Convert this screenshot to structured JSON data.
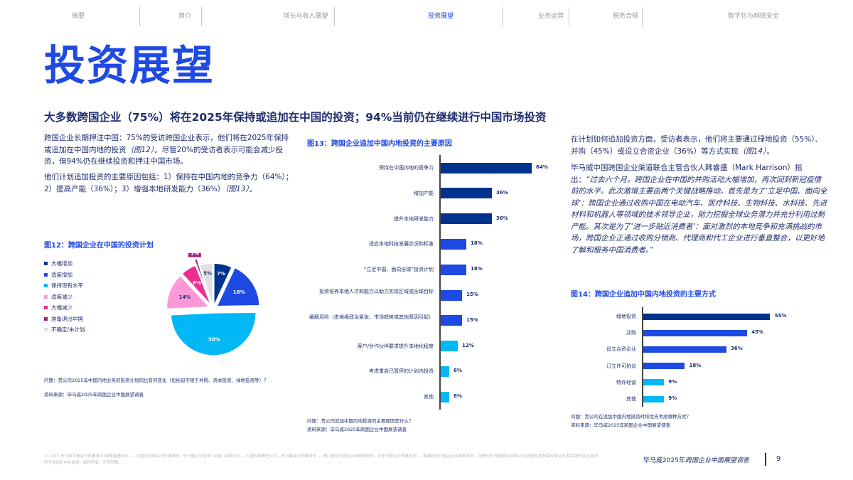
{
  "nav": {
    "items": [
      {
        "label": "摘要",
        "active": false
      },
      {
        "label": "简介",
        "active": false
      },
      {
        "label": "增长与收入展望",
        "active": false
      },
      {
        "label": "投资展望",
        "active": true
      },
      {
        "label": "业务运营",
        "active": false
      },
      {
        "label": "税务合规",
        "active": false
      },
      {
        "label": "数字化与网络安全",
        "active": false
      }
    ]
  },
  "page": {
    "title": "投资展望",
    "headline": "大多数跨国企业（75%）将在2025年保持或追加在中国的投资；94%当前仍在继续进行中国市场投资"
  },
  "left": {
    "para1_a": "跨国企业长期押注中国：75%的受访跨国企业表示，他们将在2025年保持或追加在中国内地的投资",
    "para1_ref": "（图12）",
    "para1_b": "。尽管20%的受访者表示可能会减少投资，但94%仍在继续投资和押注中国市场。",
    "para2_a": "他们计划追加投资的主要原因包括：1）保持在中国内地的竞争力（64%）；2）提高产能（36%）；3）增强本地研发能力（36%）",
    "para2_ref": "（图13）",
    "para2_b": "。"
  },
  "fig12": {
    "title": "图12：跨国企业在中国的投资计划",
    "note_question": "问题：贵公司2025年中国内地业务的投资计划同比有何变化（包括但不限于并购、资本投资、绿地投资等）？",
    "note_source": "资料来源：毕马威2025年跨国企业中国展望调查"
  },
  "fig13": {
    "title": "图13：跨国企业追加中国内地投资的主要原因",
    "note_question": "问题：贵公司追加中国内地投资的主要原因是什么？",
    "note_source": "资料来源：毕马威2025年跨国企业中国展望调查"
  },
  "right": {
    "para1_a": "在计划如何追加投资方面，受访者表示，他们将主要通过绿地投资（55%）、并购（45%）或设立合资企业（36%）等方式实现",
    "para1_ref": "（图14）",
    "para1_b": "。",
    "para2_a": "毕马威中国跨国企业渠道联合主管合伙人韩睿盛（Mark Harrison）指出：",
    "para2_quote": "“过去六个月，跨国企业在中国的并购活动大幅增加，再次回到新冠疫情前的水平。此次激增主要由两个关键战略推动。首先是为了‘立足中国、面向全球’：跨国企业通过收购中国在电动汽车、医疗科技、生物科技、水科技、先进材料和机器人等领域的技术领导企业，助力挖掘全球业务潜力并充分利用过剩产能。其次是为了‘进一步贴近消费者’：面对激烈的本地竞争和充满挑战的市场，跨国企业正通过收购分销商、代理商和代工企业进行垂直整合，以更好地了解和服务中国消费者。”"
  },
  "fig14": {
    "title": "图14：跨国企业追加中国内地投资的主要方式",
    "note_question": "问题：贵公司在追加中国内地投资时将优先考虑哪种方式？",
    "note_source": "资料来源：毕马威2025年跨国企业中国展望调查"
  },
  "footer": {
    "legal": "© 2025 毕马威华振会计师事务所(特殊普通合伙) — 中国合伙制会计师事务所，毕马威企业咨询 (中国) 有限公司 — 中国有限责任公司，毕马威会计师事务所 — 澳门特别行政区合伙制事务所，及毕马威会计师事务所 — 香港特别行政区合伙制事务所，均是与毕马威国际有限公司(英国私营担保有限公司)相关联的独立成员所全球组织中的成员。版权所有，不得转载。",
    "report_a": "毕马威2025年",
    "report_b": "跨国企业中国展望调查",
    "page_number": "9"
  },
  "colors": {
    "accent": "#1e49e2",
    "navy": "#00338d",
    "text": "#1e2d6e",
    "cyan": "#00b8f5",
    "light_pink": "#fd98d8",
    "pink": "#ed2c91",
    "purple": "#9c1f7a",
    "grey": "#e0e0e0"
  },
  "chart_data": [
    {
      "type": "pie",
      "title": "图12：跨国企业在中国的投资计划",
      "categories": [
        "大幅增加",
        "适度增加",
        "保持现有水平",
        "适度减少",
        "大幅减少",
        "准备退出中国",
        "不确定/未计划"
      ],
      "values": [
        7,
        18,
        50,
        14,
        6,
        1,
        5
      ],
      "labels": [
        "7%",
        "18%",
        "50%",
        "14%",
        "6%",
        "1%",
        "5%"
      ],
      "colors": [
        "#00338d",
        "#1e49e2",
        "#00b8f5",
        "#fd98d8",
        "#ed2c91",
        "#9c1f7a",
        "#e0e0e0"
      ],
      "legend_position": "left"
    },
    {
      "type": "bar",
      "orientation": "horizontal",
      "title": "图13：跨国企业追加中国内地投资的主要原因",
      "categories": [
        "保持在中国内地的竞争力",
        "增加产能",
        "提升本地研发能力",
        "适应本地科技发展状况和标准",
        "“立足中国、面向全球”投资计划",
        "投资培养本地人才和能力以助力实现区域或全球目标",
        "缓解风险（由地缘政治紧张、市场趋势或其他原因引起）",
        "客户/合作伙伴要求提升本地化程度",
        "考虑重启已暂停的计划内投资",
        "其他"
      ],
      "values": [
        64,
        36,
        36,
        18,
        18,
        15,
        15,
        12,
        6,
        6
      ],
      "labels": [
        "64%",
        "36%",
        "36%",
        "18%",
        "18%",
        "15%",
        "15%",
        "12%",
        "6%",
        "6%"
      ],
      "colors": [
        "#00338d",
        "#00338d",
        "#00338d",
        "#1e49e2",
        "#1e49e2",
        "#1e49e2",
        "#1e49e2",
        "#00b8f5",
        "#00b8f5",
        "#00b8f5"
      ],
      "xlabel": "",
      "ylabel": "",
      "grid": false
    },
    {
      "type": "bar",
      "orientation": "horizontal",
      "title": "图14：跨国企业追加中国内地投资的主要方式",
      "categories": [
        "绿地投资",
        "并购",
        "设立合资企业",
        "订立许可协议",
        "特许经营",
        "其他"
      ],
      "values": [
        55,
        45,
        36,
        18,
        9,
        9
      ],
      "labels": [
        "55%",
        "45%",
        "36%",
        "18%",
        "9%",
        "9%"
      ],
      "colors": [
        "#00338d",
        "#1e49e2",
        "#1e49e2",
        "#1e49e2",
        "#00b8f5",
        "#00b8f5"
      ],
      "xlabel": "",
      "ylabel": "",
      "grid": false
    }
  ]
}
